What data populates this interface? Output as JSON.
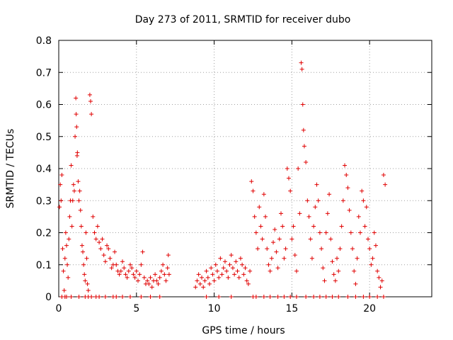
{
  "chart_data": {
    "type": "scatter",
    "title": "Day 273 of 2011, SRMTID for receiver dubo",
    "xlabel": "GPS time / hours",
    "ylabel": "SRMTID / TECUs",
    "xlim": [
      0,
      24
    ],
    "ylim": [
      0,
      0.8
    ],
    "xticks": [
      0,
      5,
      10,
      15,
      20
    ],
    "yticks": [
      0,
      0.1,
      0.2,
      0.3,
      0.4,
      0.5,
      0.6,
      0.7,
      0.8
    ],
    "xtick_labels": [
      "0",
      "5",
      "10",
      "15",
      "20"
    ],
    "ytick_labels": [
      "0",
      "0.1",
      "0.2",
      "0.3",
      "0.4",
      "0.5",
      "0.6",
      "0.7",
      "0.8"
    ],
    "grid": true,
    "marker": "+",
    "color": "#e00000",
    "series": [
      {
        "name": "SRMTID",
        "x": [
          0.05,
          0.1,
          0.15,
          0.2,
          0.25,
          0.3,
          0.35,
          0.4,
          0.45,
          0.5,
          0.55,
          0.6,
          0.65,
          0.7,
          0.75,
          0.8,
          0.85,
          0.9,
          0.95,
          1.0,
          1.05,
          1.1,
          1.12,
          1.15,
          1.18,
          1.2,
          1.25,
          1.3,
          1.35,
          1.4,
          1.45,
          1.5,
          1.55,
          1.6,
          1.65,
          1.7,
          1.75,
          1.8,
          1.85,
          1.9,
          2.0,
          2.05,
          2.1,
          2.2,
          2.3,
          2.4,
          2.5,
          2.6,
          2.7,
          2.8,
          2.9,
          3.0,
          3.1,
          3.2,
          3.3,
          3.4,
          3.5,
          3.6,
          3.7,
          3.8,
          3.9,
          4.0,
          4.1,
          4.2,
          4.3,
          4.4,
          4.5,
          4.6,
          4.7,
          4.8,
          4.9,
          5.0,
          5.1,
          5.2,
          5.3,
          5.4,
          5.5,
          5.6,
          5.7,
          5.8,
          5.9,
          6.0,
          6.1,
          6.2,
          6.3,
          6.4,
          6.5,
          6.6,
          6.7,
          6.8,
          6.9,
          7.0,
          7.05,
          7.1,
          8.8,
          8.9,
          9.0,
          9.1,
          9.2,
          9.3,
          9.4,
          9.5,
          9.6,
          9.7,
          9.8,
          9.9,
          10.0,
          10.1,
          10.2,
          10.3,
          10.4,
          10.5,
          10.6,
          10.7,
          10.8,
          10.9,
          11.0,
          11.1,
          11.2,
          11.3,
          11.4,
          11.5,
          11.6,
          11.7,
          11.8,
          11.9,
          12.0,
          12.1,
          12.2,
          12.3,
          12.4,
          12.5,
          12.6,
          12.7,
          12.8,
          12.9,
          13.0,
          13.1,
          13.2,
          13.3,
          13.4,
          13.5,
          13.6,
          13.7,
          13.8,
          13.9,
          14.0,
          14.1,
          14.2,
          14.3,
          14.4,
          14.5,
          14.6,
          14.7,
          14.8,
          14.9,
          15.0,
          15.1,
          15.2,
          15.3,
          15.4,
          15.5,
          15.6,
          15.65,
          15.7,
          15.75,
          15.8,
          15.9,
          16.0,
          16.1,
          16.2,
          16.3,
          16.4,
          16.5,
          16.6,
          16.7,
          16.8,
          16.9,
          17.0,
          17.1,
          17.2,
          17.3,
          17.4,
          17.5,
          17.6,
          17.7,
          17.8,
          17.9,
          18.0,
          18.1,
          18.2,
          18.3,
          18.4,
          18.5,
          18.6,
          18.7,
          18.8,
          18.9,
          19.0,
          19.1,
          19.2,
          19.3,
          19.4,
          19.5,
          19.6,
          19.7,
          19.8,
          19.9,
          20.0,
          20.1,
          20.2,
          20.3,
          20.4,
          20.5,
          20.6,
          20.7,
          20.8,
          20.9,
          21.0
        ],
        "y": [
          0.28,
          0.35,
          0.3,
          0.38,
          0.15,
          0.08,
          0.02,
          0.12,
          0.2,
          0.16,
          0.1,
          0.06,
          0.18,
          0.25,
          0.3,
          0.41,
          0.22,
          0.3,
          0.35,
          0.33,
          0.5,
          0.62,
          0.57,
          0.53,
          0.44,
          0.45,
          0.36,
          0.3,
          0.33,
          0.27,
          0.22,
          0.16,
          0.14,
          0.1,
          0.07,
          0.05,
          0.2,
          0.12,
          0.04,
          0.02,
          0.63,
          0.61,
          0.57,
          0.25,
          0.2,
          0.18,
          0.22,
          0.17,
          0.15,
          0.18,
          0.13,
          0.11,
          0.16,
          0.15,
          0.12,
          0.09,
          0.1,
          0.14,
          0.1,
          0.08,
          0.07,
          0.08,
          0.11,
          0.09,
          0.07,
          0.06,
          0.08,
          0.1,
          0.09,
          0.07,
          0.06,
          0.08,
          0.05,
          0.07,
          0.1,
          0.14,
          0.06,
          0.04,
          0.05,
          0.04,
          0.06,
          0.03,
          0.05,
          0.07,
          0.05,
          0.04,
          0.06,
          0.08,
          0.1,
          0.07,
          0.05,
          0.09,
          0.13,
          0.07,
          0.03,
          0.05,
          0.07,
          0.04,
          0.06,
          0.03,
          0.05,
          0.08,
          0.06,
          0.04,
          0.09,
          0.07,
          0.05,
          0.1,
          0.08,
          0.06,
          0.12,
          0.07,
          0.09,
          0.11,
          0.08,
          0.06,
          0.1,
          0.13,
          0.09,
          0.07,
          0.11,
          0.08,
          0.06,
          0.12,
          0.1,
          0.07,
          0.09,
          0.05,
          0.04,
          0.08,
          0.36,
          0.33,
          0.25,
          0.2,
          0.15,
          0.28,
          0.22,
          0.18,
          0.32,
          0.25,
          0.15,
          0.1,
          0.08,
          0.12,
          0.17,
          0.21,
          0.14,
          0.09,
          0.18,
          0.26,
          0.22,
          0.12,
          0.15,
          0.4,
          0.37,
          0.33,
          0.18,
          0.22,
          0.13,
          0.08,
          0.4,
          0.26,
          0.73,
          0.71,
          0.6,
          0.52,
          0.47,
          0.42,
          0.3,
          0.25,
          0.18,
          0.12,
          0.22,
          0.28,
          0.35,
          0.3,
          0.2,
          0.15,
          0.09,
          0.05,
          0.2,
          0.26,
          0.32,
          0.18,
          0.11,
          0.07,
          0.05,
          0.12,
          0.08,
          0.15,
          0.22,
          0.3,
          0.41,
          0.38,
          0.34,
          0.27,
          0.2,
          0.15,
          0.08,
          0.04,
          0.12,
          0.25,
          0.2,
          0.33,
          0.3,
          0.22,
          0.28,
          0.18,
          0.15,
          0.1,
          0.12,
          0.2,
          0.16,
          0.08,
          0.06,
          0.03,
          0.05,
          0.38,
          0.35
        ],
        "zero_x": [
          0.2,
          0.4,
          0.5,
          0.8,
          1.3,
          1.7,
          1.9,
          2.1,
          2.4,
          2.6,
          3.0,
          3.5,
          3.7,
          4.1,
          4.6,
          5.3,
          5.9,
          6.5,
          9.5,
          10.3,
          11.1,
          12.5,
          12.7,
          13.2,
          13.6,
          14.1,
          14.5,
          14.9,
          15.3,
          15.9,
          16.4,
          16.8,
          17.2,
          17.6,
          18.0,
          18.6,
          19.1,
          19.6,
          20.0,
          20.5,
          20.9
        ]
      }
    ]
  }
}
